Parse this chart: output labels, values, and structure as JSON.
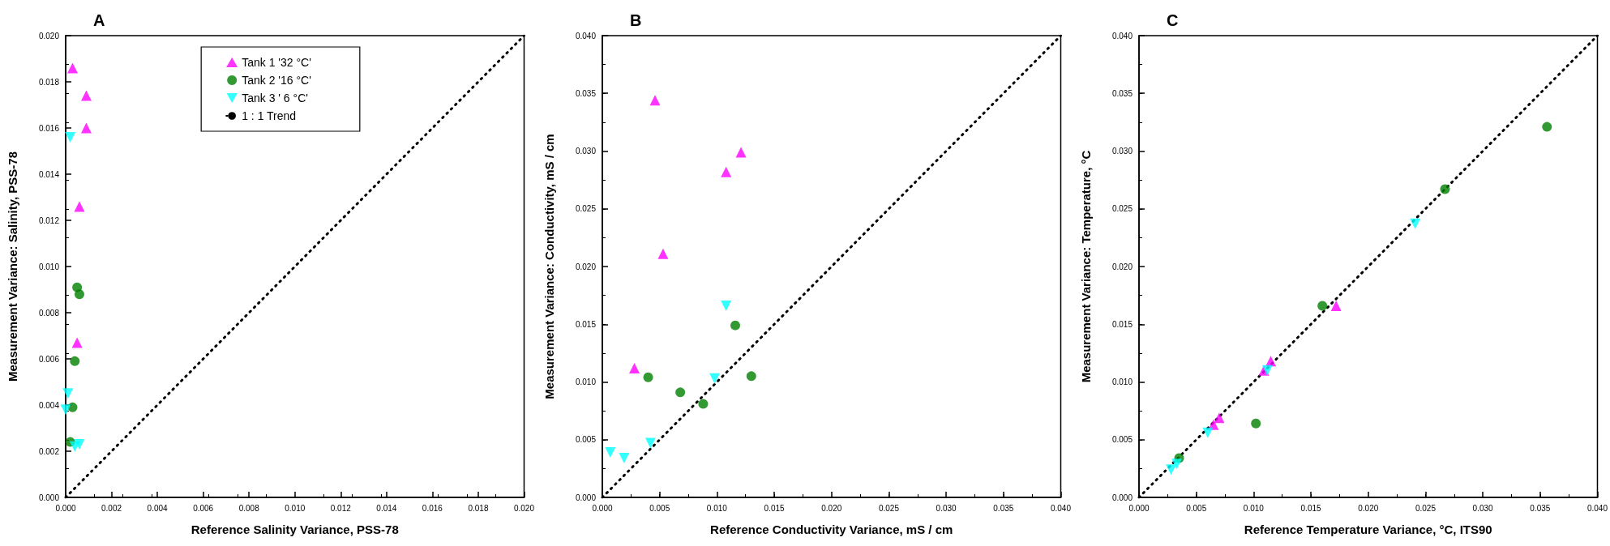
{
  "chart_data": [
    {
      "type": "scatter",
      "title": "A",
      "xlabel": "Reference Salinity Variance, PSS-78",
      "ylabel": "Measurement Variance: Salinity, PSS-78",
      "xlim": [
        0,
        0.02
      ],
      "ylim": [
        0,
        0.02
      ],
      "xticks": [
        {
          "value": 0,
          "label": "0.000"
        },
        {
          "value": 0.002,
          "label": "0.002"
        },
        {
          "value": 0.004,
          "label": "0.004"
        },
        {
          "value": 0.006,
          "label": "0.006"
        },
        {
          "value": 0.008,
          "label": "0.008"
        },
        {
          "value": 0.01,
          "label": "0.010"
        },
        {
          "value": 0.012,
          "label": "0.012"
        },
        {
          "value": 0.014,
          "label": "0.014"
        },
        {
          "value": 0.016,
          "label": "0.016"
        },
        {
          "value": 0.018,
          "label": "0.018"
        },
        {
          "value": 0.02,
          "label": "0.020"
        }
      ],
      "yticks": [
        {
          "value": 0,
          "label": "0.000"
        },
        {
          "value": 0.002,
          "label": "0.002"
        },
        {
          "value": 0.004,
          "label": "0.004"
        },
        {
          "value": 0.006,
          "label": "0.006"
        },
        {
          "value": 0.008,
          "label": "0.008"
        },
        {
          "value": 0.01,
          "label": "0.010"
        },
        {
          "value": 0.012,
          "label": "0.012"
        },
        {
          "value": 0.014,
          "label": "0.014"
        },
        {
          "value": 0.016,
          "label": "0.016"
        },
        {
          "value": 0.018,
          "label": "0.018"
        },
        {
          "value": 0.02,
          "label": "0.020"
        }
      ],
      "grid": false,
      "legend": "top",
      "series": [
        {
          "name": "Tank 1 '32 °C'",
          "color": "#ff00ff",
          "marker": "triangle",
          "x": [
            0.0003,
            0.0009,
            0.0009,
            0.0006,
            0.0005
          ],
          "values": [
            0.0186,
            0.0174,
            0.016,
            0.0126,
            0.0067
          ]
        },
        {
          "name": "Tank 2 '16 °C'",
          "color": "#008000",
          "marker": "circle",
          "x": [
            0.0005,
            0.0006,
            0.0004,
            0.0003,
            0.0002
          ],
          "values": [
            0.0091,
            0.0088,
            0.0059,
            0.0039,
            0.0024
          ]
        },
        {
          "name": "Tank 3 ' 6 °C'",
          "color": "#00ffff",
          "marker": "triangle-down",
          "x": [
            0.0002,
            0.0001,
            0.0,
            0.0004,
            0.0006
          ],
          "values": [
            0.0156,
            0.0045,
            0.0038,
            0.0022,
            0.0023
          ]
        },
        {
          "name": "1 : 1 Trend",
          "type": "line",
          "color": "#000000",
          "line_style": "dotted",
          "marker": "none",
          "x": [
            0,
            0.02
          ],
          "values": [
            0,
            0.02
          ]
        }
      ]
    },
    {
      "type": "scatter",
      "title": "B",
      "xlabel": "Reference Conductivity Variance, mS / cm",
      "ylabel": "Measurement Variance: Conductivity, mS / cm",
      "xlim": [
        0,
        0.04
      ],
      "ylim": [
        0,
        0.04
      ],
      "xticks": [
        {
          "value": 0,
          "label": "0.000"
        },
        {
          "value": 0.005,
          "label": "0.005"
        },
        {
          "value": 0.01,
          "label": "0.010"
        },
        {
          "value": 0.015,
          "label": "0.015"
        },
        {
          "value": 0.02,
          "label": "0.020"
        },
        {
          "value": 0.025,
          "label": "0.025"
        },
        {
          "value": 0.03,
          "label": "0.030"
        },
        {
          "value": 0.035,
          "label": "0.035"
        },
        {
          "value": 0.04,
          "label": "0.040"
        }
      ],
      "yticks": [
        {
          "value": 0,
          "label": "0.000"
        },
        {
          "value": 0.005,
          "label": "0.005"
        },
        {
          "value": 0.01,
          "label": "0.010"
        },
        {
          "value": 0.015,
          "label": "0.015"
        },
        {
          "value": 0.02,
          "label": "0.020"
        },
        {
          "value": 0.025,
          "label": "0.025"
        },
        {
          "value": 0.03,
          "label": "0.030"
        },
        {
          "value": 0.035,
          "label": "0.035"
        },
        {
          "value": 0.04,
          "label": "0.040"
        }
      ],
      "grid": false,
      "series": [
        {
          "color": "#ff00ff",
          "marker": "triangle",
          "x": [
            0.0046,
            0.0053,
            0.0108,
            0.0121,
            0.0028
          ],
          "values": [
            0.0344,
            0.0211,
            0.0282,
            0.0299,
            0.0112
          ]
        },
        {
          "color": "#008000",
          "marker": "circle",
          "x": [
            0.004,
            0.0068,
            0.0088,
            0.0116,
            0.013
          ],
          "values": [
            0.0104,
            0.0091,
            0.0081,
            0.0149,
            0.0105
          ]
        },
        {
          "color": "#00ffff",
          "marker": "triangle-down",
          "x": [
            0.0007,
            0.0019,
            0.0042,
            0.0098,
            0.0108
          ],
          "values": [
            0.0039,
            0.0034,
            0.0047,
            0.0103,
            0.0166
          ]
        },
        {
          "type": "line",
          "color": "#000000",
          "line_style": "dotted",
          "marker": "none",
          "x": [
            0,
            0.04
          ],
          "values": [
            0,
            0.04
          ]
        }
      ]
    },
    {
      "type": "scatter",
      "title": "C",
      "xlabel": "Reference Temperature Variance, °C, ITS90",
      "ylabel": "Measurement Variance: Temperature, °C",
      "xlim": [
        0,
        0.04
      ],
      "ylim": [
        0,
        0.04
      ],
      "xticks": [
        {
          "value": 0,
          "label": "0.000"
        },
        {
          "value": 0.005,
          "label": "0.005"
        },
        {
          "value": 0.01,
          "label": "0.010"
        },
        {
          "value": 0.015,
          "label": "0.015"
        },
        {
          "value": 0.02,
          "label": "0.020"
        },
        {
          "value": 0.025,
          "label": "0.025"
        },
        {
          "value": 0.03,
          "label": "0.030"
        },
        {
          "value": 0.035,
          "label": "0.035"
        },
        {
          "value": 0.04,
          "label": "0.040"
        }
      ],
      "yticks": [
        {
          "value": 0,
          "label": "0.000"
        },
        {
          "value": 0.005,
          "label": "0.005"
        },
        {
          "value": 0.01,
          "label": "0.010"
        },
        {
          "value": 0.015,
          "label": "0.015"
        },
        {
          "value": 0.02,
          "label": "0.020"
        },
        {
          "value": 0.025,
          "label": "0.025"
        },
        {
          "value": 0.03,
          "label": "0.030"
        },
        {
          "value": 0.035,
          "label": "0.035"
        },
        {
          "value": 0.04,
          "label": "0.040"
        }
      ],
      "grid": false,
      "series": [
        {
          "color": "#ff00ff",
          "marker": "triangle",
          "x": [
            0.0172,
            0.0115,
            0.0109,
            0.007,
            0.0065
          ],
          "values": [
            0.0166,
            0.0118,
            0.011,
            0.0069,
            0.0063
          ]
        },
        {
          "color": "#008000",
          "marker": "circle",
          "x": [
            0.0356,
            0.0267,
            0.016,
            0.0102,
            0.0035
          ],
          "values": [
            0.0321,
            0.0267,
            0.0166,
            0.0064,
            0.0034
          ]
        },
        {
          "color": "#00ffff",
          "marker": "triangle-down",
          "x": [
            0.0241,
            0.0112,
            0.006,
            0.0033,
            0.0028
          ],
          "values": [
            0.0237,
            0.011,
            0.0056,
            0.0029,
            0.0024
          ]
        },
        {
          "type": "line",
          "color": "#000000",
          "line_style": "dotted",
          "marker": "none",
          "x": [
            0,
            0.04
          ],
          "values": [
            0,
            0.04
          ]
        }
      ]
    }
  ]
}
